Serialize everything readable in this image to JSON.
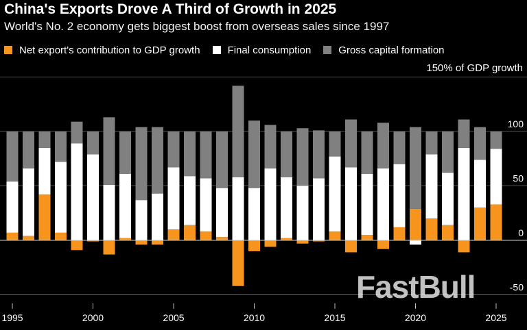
{
  "header": {
    "title": "China's Exports Drove A Third of Growth in 2025",
    "subtitle": "World's No. 2 economy gets biggest boost from overseas sales since 1997"
  },
  "legend": [
    {
      "label": "Net export's contribution to GDP growth",
      "color": "#f7941d"
    },
    {
      "label": "Final consumption",
      "color": "#ffffff"
    },
    {
      "label": "Gross capital formation",
      "color": "#808080"
    }
  ],
  "unit_label": "150% of GDP growth",
  "watermark": "FastBull",
  "chart_data": {
    "type": "bar",
    "stacked": true,
    "title": "China's Exports Drove A Third of Growth in 2025",
    "subtitle": "World's No. 2 economy gets biggest boost from overseas sales since 1997",
    "x": [
      1995,
      1996,
      1997,
      1998,
      1999,
      2000,
      2001,
      2002,
      2003,
      2004,
      2005,
      2006,
      2007,
      2008,
      2009,
      2010,
      2011,
      2012,
      2013,
      2014,
      2015,
      2016,
      2017,
      2018,
      2019,
      2020,
      2021,
      2022,
      2023,
      2024,
      2025
    ],
    "series": [
      {
        "name": "Net export's contribution to GDP growth",
        "color": "#f7941d",
        "values": [
          7,
          4,
          42,
          7,
          -9,
          -1,
          -13,
          2,
          -4,
          -4,
          10,
          14,
          8,
          3,
          -42,
          -10,
          -6,
          2,
          -3,
          -1,
          8,
          -11,
          5,
          -8,
          12,
          29,
          20,
          14,
          -11,
          30,
          33
        ]
      },
      {
        "name": "Final consumption",
        "color": "#ffffff",
        "values": [
          47,
          62,
          43,
          65,
          89,
          79,
          51,
          59,
          37,
          43,
          57,
          45,
          49,
          45,
          58,
          48,
          66,
          56,
          50,
          57,
          69,
          67,
          56,
          66,
          58,
          -4,
          59,
          48,
          85,
          44,
          51
        ]
      },
      {
        "name": "Gross capital formation",
        "color": "#808080",
        "values": [
          46,
          34,
          15,
          28,
          20,
          21,
          62,
          39,
          67,
          61,
          33,
          41,
          43,
          52,
          84,
          62,
          40,
          42,
          53,
          44,
          23,
          44,
          39,
          42,
          30,
          75,
          21,
          38,
          26,
          30,
          16
        ]
      }
    ],
    "yticks": [
      100,
      50,
      0,
      -50
    ],
    "ylim": [
      -50,
      150
    ],
    "xticks": [
      1995,
      2000,
      2005,
      2010,
      2015,
      2020,
      2025
    ],
    "ylabel": "150% of GDP growth",
    "grid": true,
    "legend_position": "top"
  }
}
